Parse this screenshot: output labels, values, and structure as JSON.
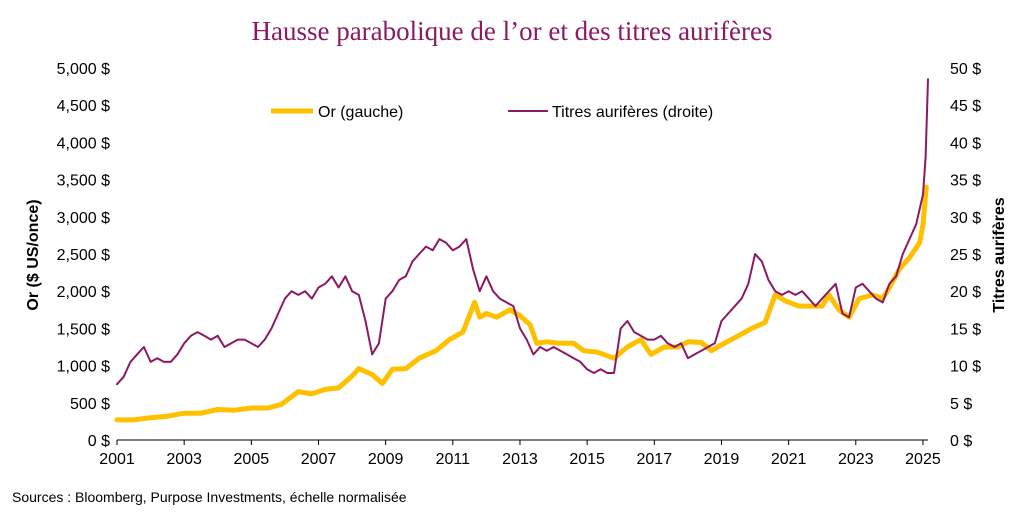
{
  "chart_data": {
    "type": "line",
    "title": "Hausse parabolique de l’or et des titres aurifères",
    "ylabel_left": "Or ($ US/once)",
    "ylabel_right": "Titres aurifères",
    "source": "Sources : Bloomberg, Purpose Investments, échelle normalisée",
    "xlim": [
      2001,
      2025.15
    ],
    "ylim_left": [
      0,
      5000
    ],
    "ylim_right": [
      0,
      50
    ],
    "x_ticks": [
      "2001",
      "2003",
      "2005",
      "2007",
      "2009",
      "2011",
      "2013",
      "2015",
      "2017",
      "2019",
      "2021",
      "2023",
      "2025"
    ],
    "y_ticks_left": [
      "0 $",
      "500 $",
      "1,000 $",
      "1,500 $",
      "2,000 $",
      "2,500 $",
      "3,000 $",
      "3,500 $",
      "4,000 $",
      "4,500 $",
      "5,000 $"
    ],
    "y_ticks_right": [
      "0 $",
      "5 $",
      "10 $",
      "15 $",
      "20 $",
      "25 $",
      "30 $",
      "35 $",
      "40 $",
      "45 $",
      "50 $"
    ],
    "legend_position": "top",
    "series": [
      {
        "name": "Or (gauche)",
        "axis": "left",
        "color": "#ffc000",
        "x": [
          2001.0,
          2001.5,
          2002.0,
          2002.5,
          2003.0,
          2003.5,
          2004.0,
          2004.5,
          2005.0,
          2005.5,
          2005.9,
          2006.4,
          2006.8,
          2007.2,
          2007.6,
          2008.0,
          2008.2,
          2008.6,
          2008.9,
          2009.2,
          2009.6,
          2010.0,
          2010.5,
          2010.9,
          2011.3,
          2011.65,
          2011.8,
          2012.0,
          2012.3,
          2012.7,
          2013.0,
          2013.3,
          2013.5,
          2013.8,
          2014.2,
          2014.6,
          2014.9,
          2015.3,
          2015.8,
          2016.2,
          2016.6,
          2016.9,
          2017.3,
          2017.7,
          2018.0,
          2018.4,
          2018.7,
          2019.0,
          2019.5,
          2019.9,
          2020.3,
          2020.6,
          2020.9,
          2021.3,
          2021.7,
          2022.0,
          2022.2,
          2022.5,
          2022.8,
          2023.1,
          2023.5,
          2023.8,
          2024.0,
          2024.3,
          2024.6,
          2024.9,
          2025.0,
          2025.1
        ],
        "values": [
          270,
          270,
          300,
          320,
          360,
          360,
          410,
          400,
          430,
          430,
          480,
          650,
          620,
          680,
          700,
          860,
          960,
          880,
          760,
          950,
          960,
          1100,
          1200,
          1350,
          1450,
          1850,
          1650,
          1700,
          1650,
          1750,
          1670,
          1550,
          1300,
          1320,
          1300,
          1300,
          1200,
          1180,
          1100,
          1250,
          1350,
          1150,
          1250,
          1250,
          1320,
          1310,
          1200,
          1280,
          1400,
          1500,
          1580,
          1950,
          1870,
          1800,
          1800,
          1800,
          1950,
          1750,
          1650,
          1900,
          1950,
          1900,
          2050,
          2300,
          2450,
          2650,
          2900,
          3400
        ]
      },
      {
        "name": "Titres aurifères (droite)",
        "axis": "right",
        "color": "#8b1a63",
        "x": [
          2001.0,
          2001.2,
          2001.4,
          2001.6,
          2001.8,
          2002.0,
          2002.2,
          2002.4,
          2002.6,
          2002.8,
          2003.0,
          2003.2,
          2003.4,
          2003.6,
          2003.8,
          2004.0,
          2004.2,
          2004.4,
          2004.6,
          2004.8,
          2005.0,
          2005.2,
          2005.4,
          2005.6,
          2005.8,
          2006.0,
          2006.2,
          2006.4,
          2006.6,
          2006.8,
          2007.0,
          2007.2,
          2007.4,
          2007.6,
          2007.8,
          2008.0,
          2008.2,
          2008.4,
          2008.6,
          2008.8,
          2009.0,
          2009.2,
          2009.4,
          2009.6,
          2009.8,
          2010.0,
          2010.2,
          2010.4,
          2010.6,
          2010.8,
          2011.0,
          2011.2,
          2011.4,
          2011.6,
          2011.8,
          2012.0,
          2012.2,
          2012.4,
          2012.6,
          2012.8,
          2013.0,
          2013.2,
          2013.4,
          2013.6,
          2013.8,
          2014.0,
          2014.2,
          2014.4,
          2014.6,
          2014.8,
          2015.0,
          2015.2,
          2015.4,
          2015.6,
          2015.8,
          2016.0,
          2016.2,
          2016.4,
          2016.6,
          2016.8,
          2017.0,
          2017.2,
          2017.4,
          2017.6,
          2017.8,
          2018.0,
          2018.2,
          2018.4,
          2018.6,
          2018.8,
          2019.0,
          2019.2,
          2019.4,
          2019.6,
          2019.8,
          2020.0,
          2020.2,
          2020.4,
          2020.6,
          2020.8,
          2021.0,
          2021.2,
          2021.4,
          2021.6,
          2021.8,
          2022.0,
          2022.2,
          2022.4,
          2022.6,
          2022.8,
          2023.0,
          2023.2,
          2023.4,
          2023.6,
          2023.8,
          2024.0,
          2024.2,
          2024.4,
          2024.6,
          2024.8,
          2025.0,
          2025.08,
          2025.15
        ],
        "values": [
          7.5,
          8.5,
          10.5,
          11.5,
          12.5,
          10.5,
          11.0,
          10.5,
          10.5,
          11.5,
          13.0,
          14.0,
          14.5,
          14.0,
          13.5,
          14.0,
          12.5,
          13.0,
          13.5,
          13.5,
          13.0,
          12.5,
          13.5,
          15.0,
          17.0,
          19.0,
          20.0,
          19.5,
          20.0,
          19.0,
          20.5,
          21.0,
          22.0,
          20.5,
          22.0,
          20.0,
          19.5,
          16.0,
          11.5,
          13.0,
          19.0,
          20.0,
          21.5,
          22.0,
          24.0,
          25.0,
          26.0,
          25.5,
          27.0,
          26.5,
          25.5,
          26.0,
          27.0,
          23.0,
          20.0,
          22.0,
          20.0,
          19.0,
          18.5,
          18.0,
          15.0,
          13.5,
          11.5,
          12.5,
          12.0,
          12.5,
          12.0,
          11.5,
          11.0,
          10.5,
          9.5,
          9.0,
          9.5,
          9.0,
          9.0,
          15.0,
          16.0,
          14.5,
          14.0,
          13.5,
          13.5,
          14.0,
          13.0,
          12.5,
          13.0,
          11.0,
          11.5,
          12.0,
          12.5,
          13.0,
          16.0,
          17.0,
          18.0,
          19.0,
          21.0,
          25.0,
          24.0,
          21.5,
          20.0,
          19.5,
          20.0,
          19.5,
          20.0,
          19.0,
          18.0,
          19.0,
          20.0,
          21.0,
          17.0,
          16.5,
          20.5,
          21.0,
          20.0,
          19.0,
          18.5,
          21.0,
          22.0,
          25.0,
          27.0,
          29.0,
          33.0,
          38.0,
          48.5
        ]
      }
    ]
  }
}
